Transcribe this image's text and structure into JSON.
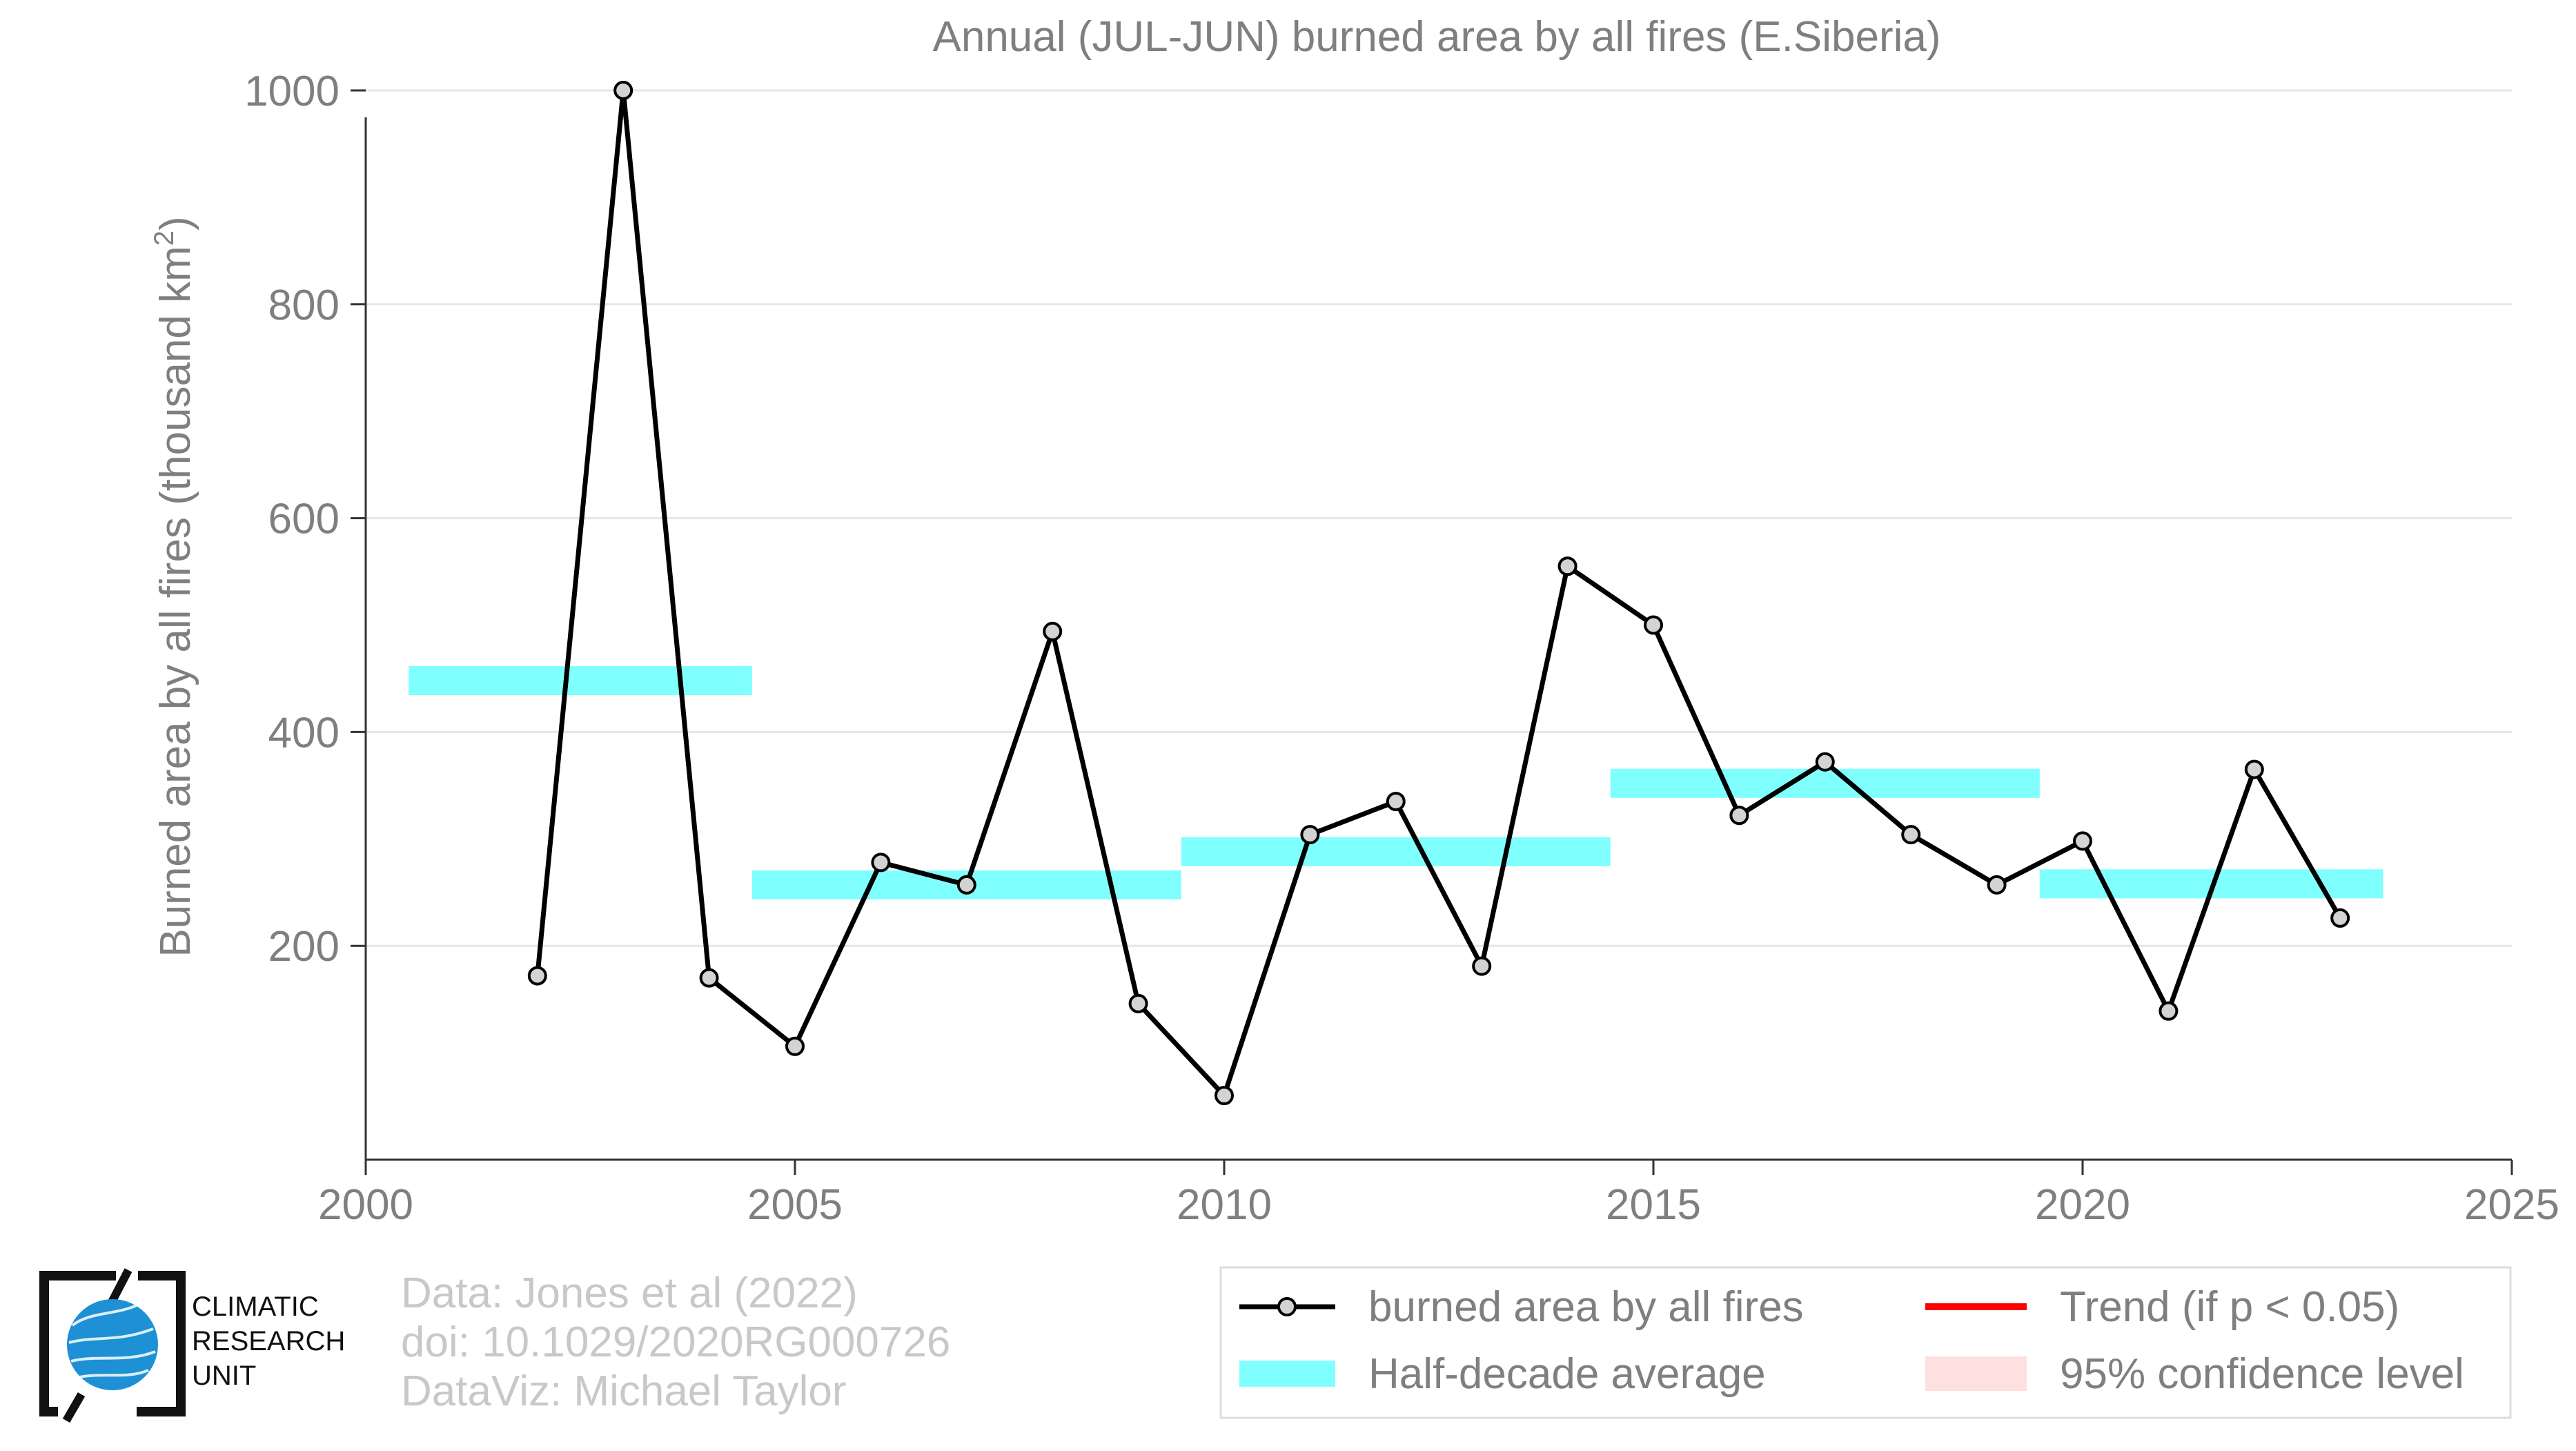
{
  "chart_data": {
    "type": "line",
    "title": "Annual (JUL-JUN) burned area by all fires (E.Siberia)",
    "ylabel": "Burned area by all fires (thousand km",
    "ylabel_sup": "2",
    "ylabel_close": ")",
    "xlabel": "",
    "xlim": [
      2000,
      2025
    ],
    "ylim": [
      0,
      1020
    ],
    "x_ticks": [
      2000,
      2005,
      2010,
      2015,
      2020,
      2025
    ],
    "y_ticks": [
      200,
      400,
      600,
      800,
      1000
    ],
    "grid": "horizontal",
    "legend_position": "bottom-right",
    "series": [
      {
        "name": "burned area by all fires",
        "color": "#000000",
        "marker_fill": "#d3d3d3",
        "x": [
          2002,
          2003,
          2004,
          2005,
          2006,
          2007,
          2008,
          2009,
          2010,
          2011,
          2012,
          2013,
          2014,
          2015,
          2016,
          2017,
          2018,
          2019,
          2020,
          2021,
          2022,
          2023
        ],
        "y": [
          172,
          1000,
          170,
          106,
          278,
          257,
          494,
          146,
          60,
          304,
          335,
          181,
          555,
          500,
          322,
          372,
          304,
          257,
          298,
          139,
          365,
          226
        ]
      }
    ],
    "half_decade_average": {
      "name": "Half-decade average",
      "color": "#80ffff",
      "segments": [
        {
          "x0": 2000.5,
          "x1": 2004.5,
          "y": 448
        },
        {
          "x0": 2004.5,
          "x1": 2009.5,
          "y": 257
        },
        {
          "x0": 2009.5,
          "x1": 2014.5,
          "y": 288
        },
        {
          "x0": 2014.5,
          "x1": 2019.5,
          "y": 352
        },
        {
          "x0": 2019.5,
          "x1": 2023.5,
          "y": 258
        }
      ]
    },
    "legend": [
      {
        "label": "burned area by all fires",
        "kind": "line-marker",
        "color": "#000000"
      },
      {
        "label": "Trend (if p < 0.05)",
        "kind": "line",
        "color": "#ff0000"
      },
      {
        "label": "Half-decade average",
        "kind": "band",
        "color": "#80ffff"
      },
      {
        "label": "95% confidence level",
        "kind": "patch",
        "color": "#ffe0e0"
      }
    ]
  },
  "logo": {
    "lines": [
      "CLIMATIC",
      "RESEARCH",
      "UNIT"
    ]
  },
  "credits": {
    "line1": "Data: Jones et al (2022)",
    "line2": "doi: 10.1029/2020RG000726",
    "line3": "DataViz: Michael Taylor"
  },
  "colors": {
    "axis_text": "#7f7f7f",
    "grid": "#e6e6e6",
    "credits": "#c8c8c8",
    "logo_blue": "#1e90d6"
  }
}
